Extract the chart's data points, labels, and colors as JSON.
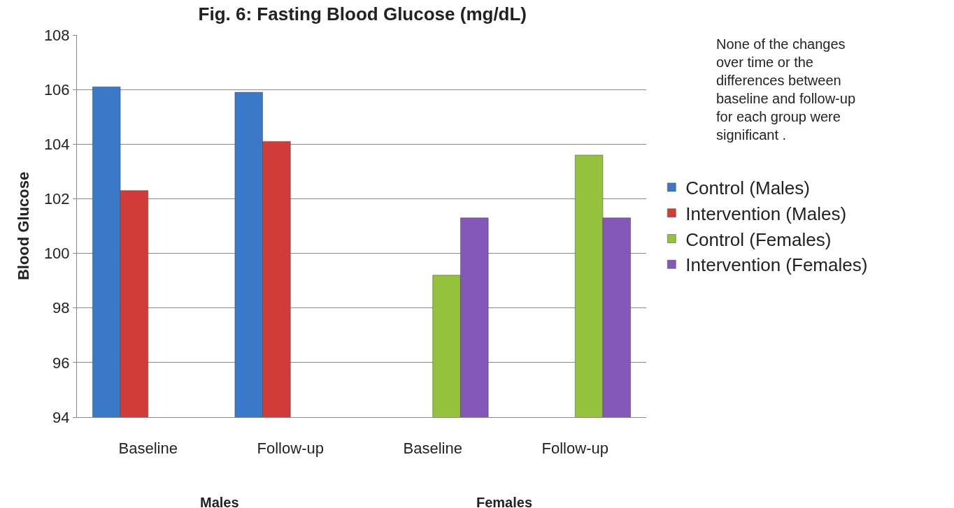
{
  "chart_data": {
    "type": "bar",
    "title": "Fig. 6: Fasting Blood Glucose (mg/dL)",
    "ylabel": "Blood Glucose",
    "categories": [
      "Baseline",
      "Follow-up",
      "Baseline",
      "Follow-up"
    ],
    "series": [
      {
        "name": "Control (Males)",
        "color": "#3a78c8",
        "values": [
          106.1,
          105.9,
          null,
          null
        ]
      },
      {
        "name": "Intervention (Males)",
        "color": "#d23c38",
        "values": [
          102.3,
          104.1,
          null,
          null
        ]
      },
      {
        "name": "Control (Females)",
        "color": "#94c23c",
        "values": [
          null,
          null,
          99.2,
          103.6
        ]
      },
      {
        "name": "Intervention (Females)",
        "color": "#8458b8",
        "values": [
          null,
          null,
          101.3,
          101.3
        ]
      }
    ],
    "ylim": [
      94,
      108
    ],
    "yticks": [
      94,
      96,
      98,
      100,
      102,
      104,
      106,
      108
    ],
    "grid": "y",
    "legend": "right",
    "annotations": [
      "None of the changes over time or the differences between baseline and follow-up for each group were significant .",
      "Males",
      "Females"
    ]
  }
}
